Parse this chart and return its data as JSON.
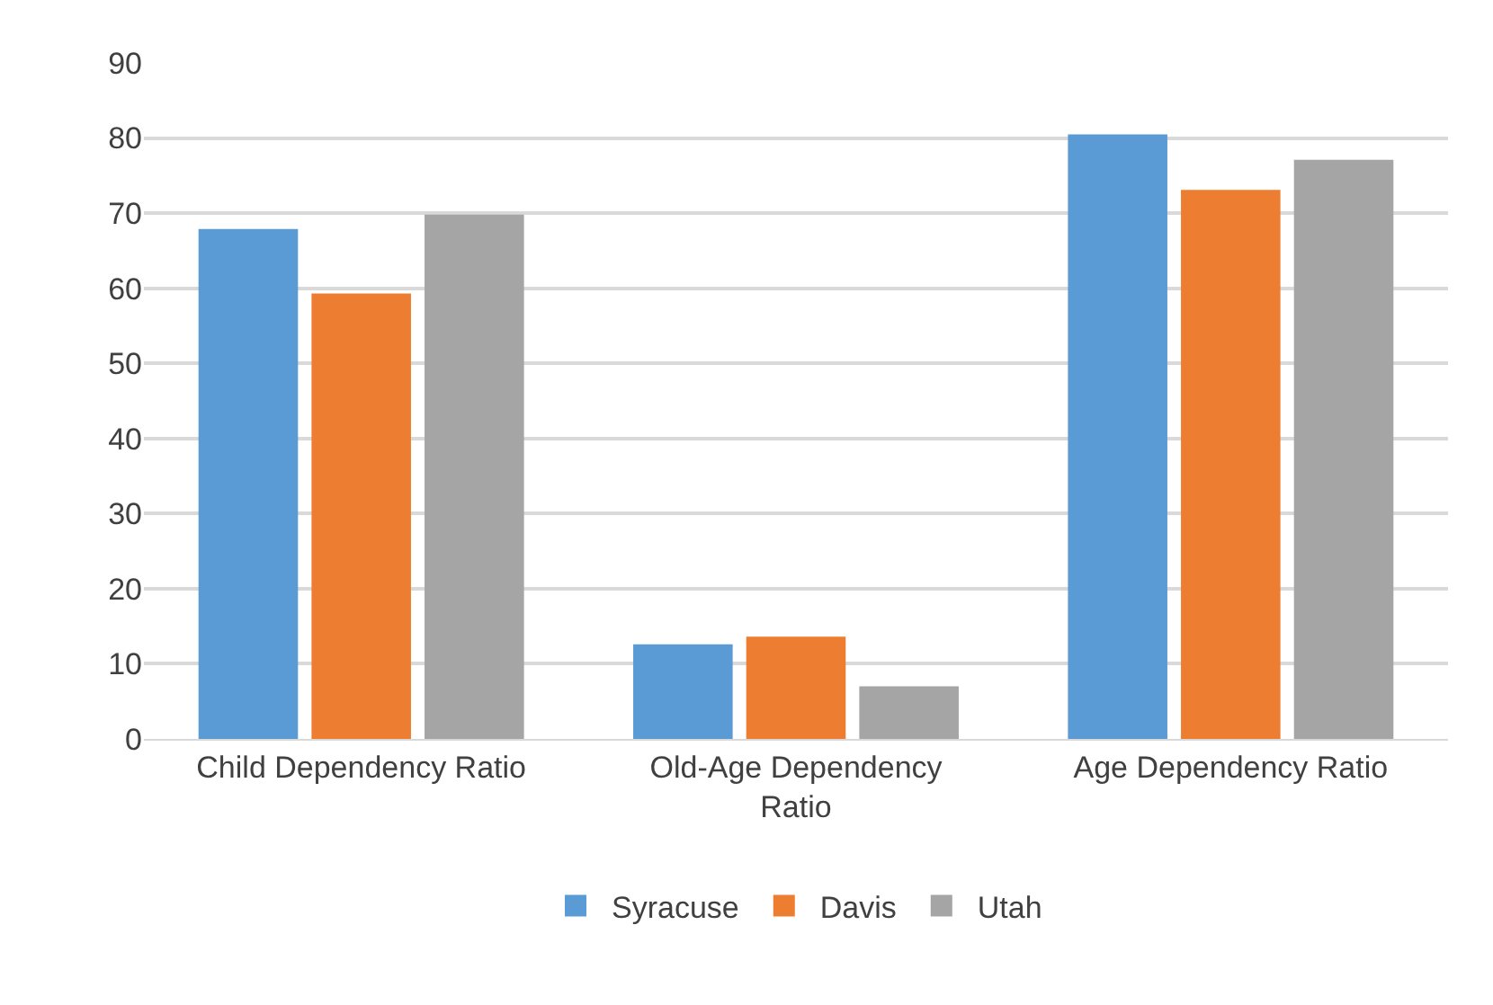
{
  "chart_data": {
    "type": "bar",
    "categories": [
      "Child Dependency Ratio",
      "Old-Age Dependency Ratio",
      "Age Dependency Ratio"
    ],
    "series": [
      {
        "name": "Syracuse",
        "color": "#5b9bd5",
        "values": [
          67.9,
          12.6,
          80.5
        ]
      },
      {
        "name": "Davis",
        "color": "#ed7d31",
        "values": [
          59.3,
          13.6,
          73.1
        ]
      },
      {
        "name": "Utah",
        "color": "#a5a5a5",
        "values": [
          69.8,
          7.0,
          77.1
        ]
      }
    ],
    "ylim": [
      0,
      90
    ],
    "yticks": [
      0,
      10,
      20,
      30,
      40,
      50,
      60,
      70,
      80,
      90
    ],
    "grid": "y",
    "legend": "bottom"
  }
}
